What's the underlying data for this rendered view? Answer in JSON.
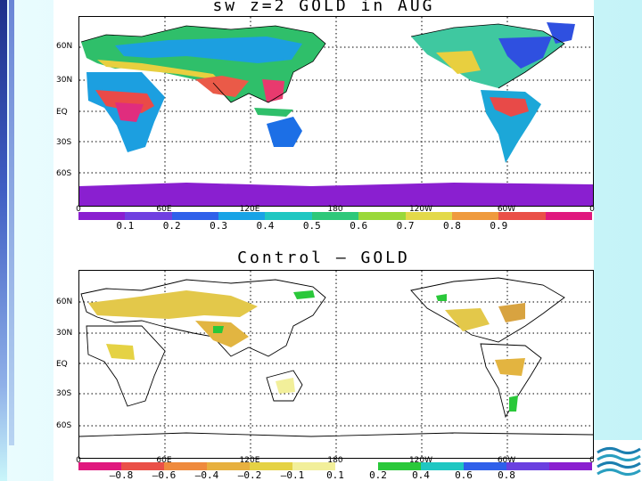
{
  "top_map": {
    "title": "sw  z=2  GOLD  in  AUG",
    "lat_labels": [
      "60N",
      "30N",
      "EQ",
      "30S",
      "60S"
    ],
    "lon_labels": [
      "0",
      "60E",
      "120E",
      "180",
      "120W",
      "60W",
      "0"
    ],
    "colorbar_colors": [
      "#8a1fd0",
      "#7040e0",
      "#2f60ea",
      "#18a3e6",
      "#1fc7c2",
      "#2ec87a",
      "#9ad83a",
      "#e3d94a",
      "#ef9a3d",
      "#ea5048",
      "#e0187e"
    ],
    "colorbar_labels": [
      "0.1",
      "0.2",
      "0.3",
      "0.4",
      "0.5",
      "0.6",
      "0.7",
      "0.8",
      "0.9"
    ]
  },
  "bottom_map": {
    "title": "Control  –  GOLD",
    "lat_labels": [
      "60N",
      "30N",
      "EQ",
      "30S",
      "60S"
    ],
    "lon_labels": [
      "0",
      "60E",
      "120E",
      "180",
      "120W",
      "60W",
      "0"
    ],
    "colorbar_colors": [
      "#e0187e",
      "#ea5048",
      "#ef8a3d",
      "#e7b03f",
      "#e5d244",
      "#f2ef9a",
      "#ffffff",
      "#2ac83a",
      "#1fc7c2",
      "#2f60ea",
      "#6a40e0",
      "#8a1fd0"
    ],
    "colorbar_labels": [
      "–0.8",
      "–0.6",
      "–0.4",
      "–0.2",
      "–0.1",
      "0.1",
      "0.2",
      "0.4",
      "0.6",
      "0.8"
    ]
  }
}
